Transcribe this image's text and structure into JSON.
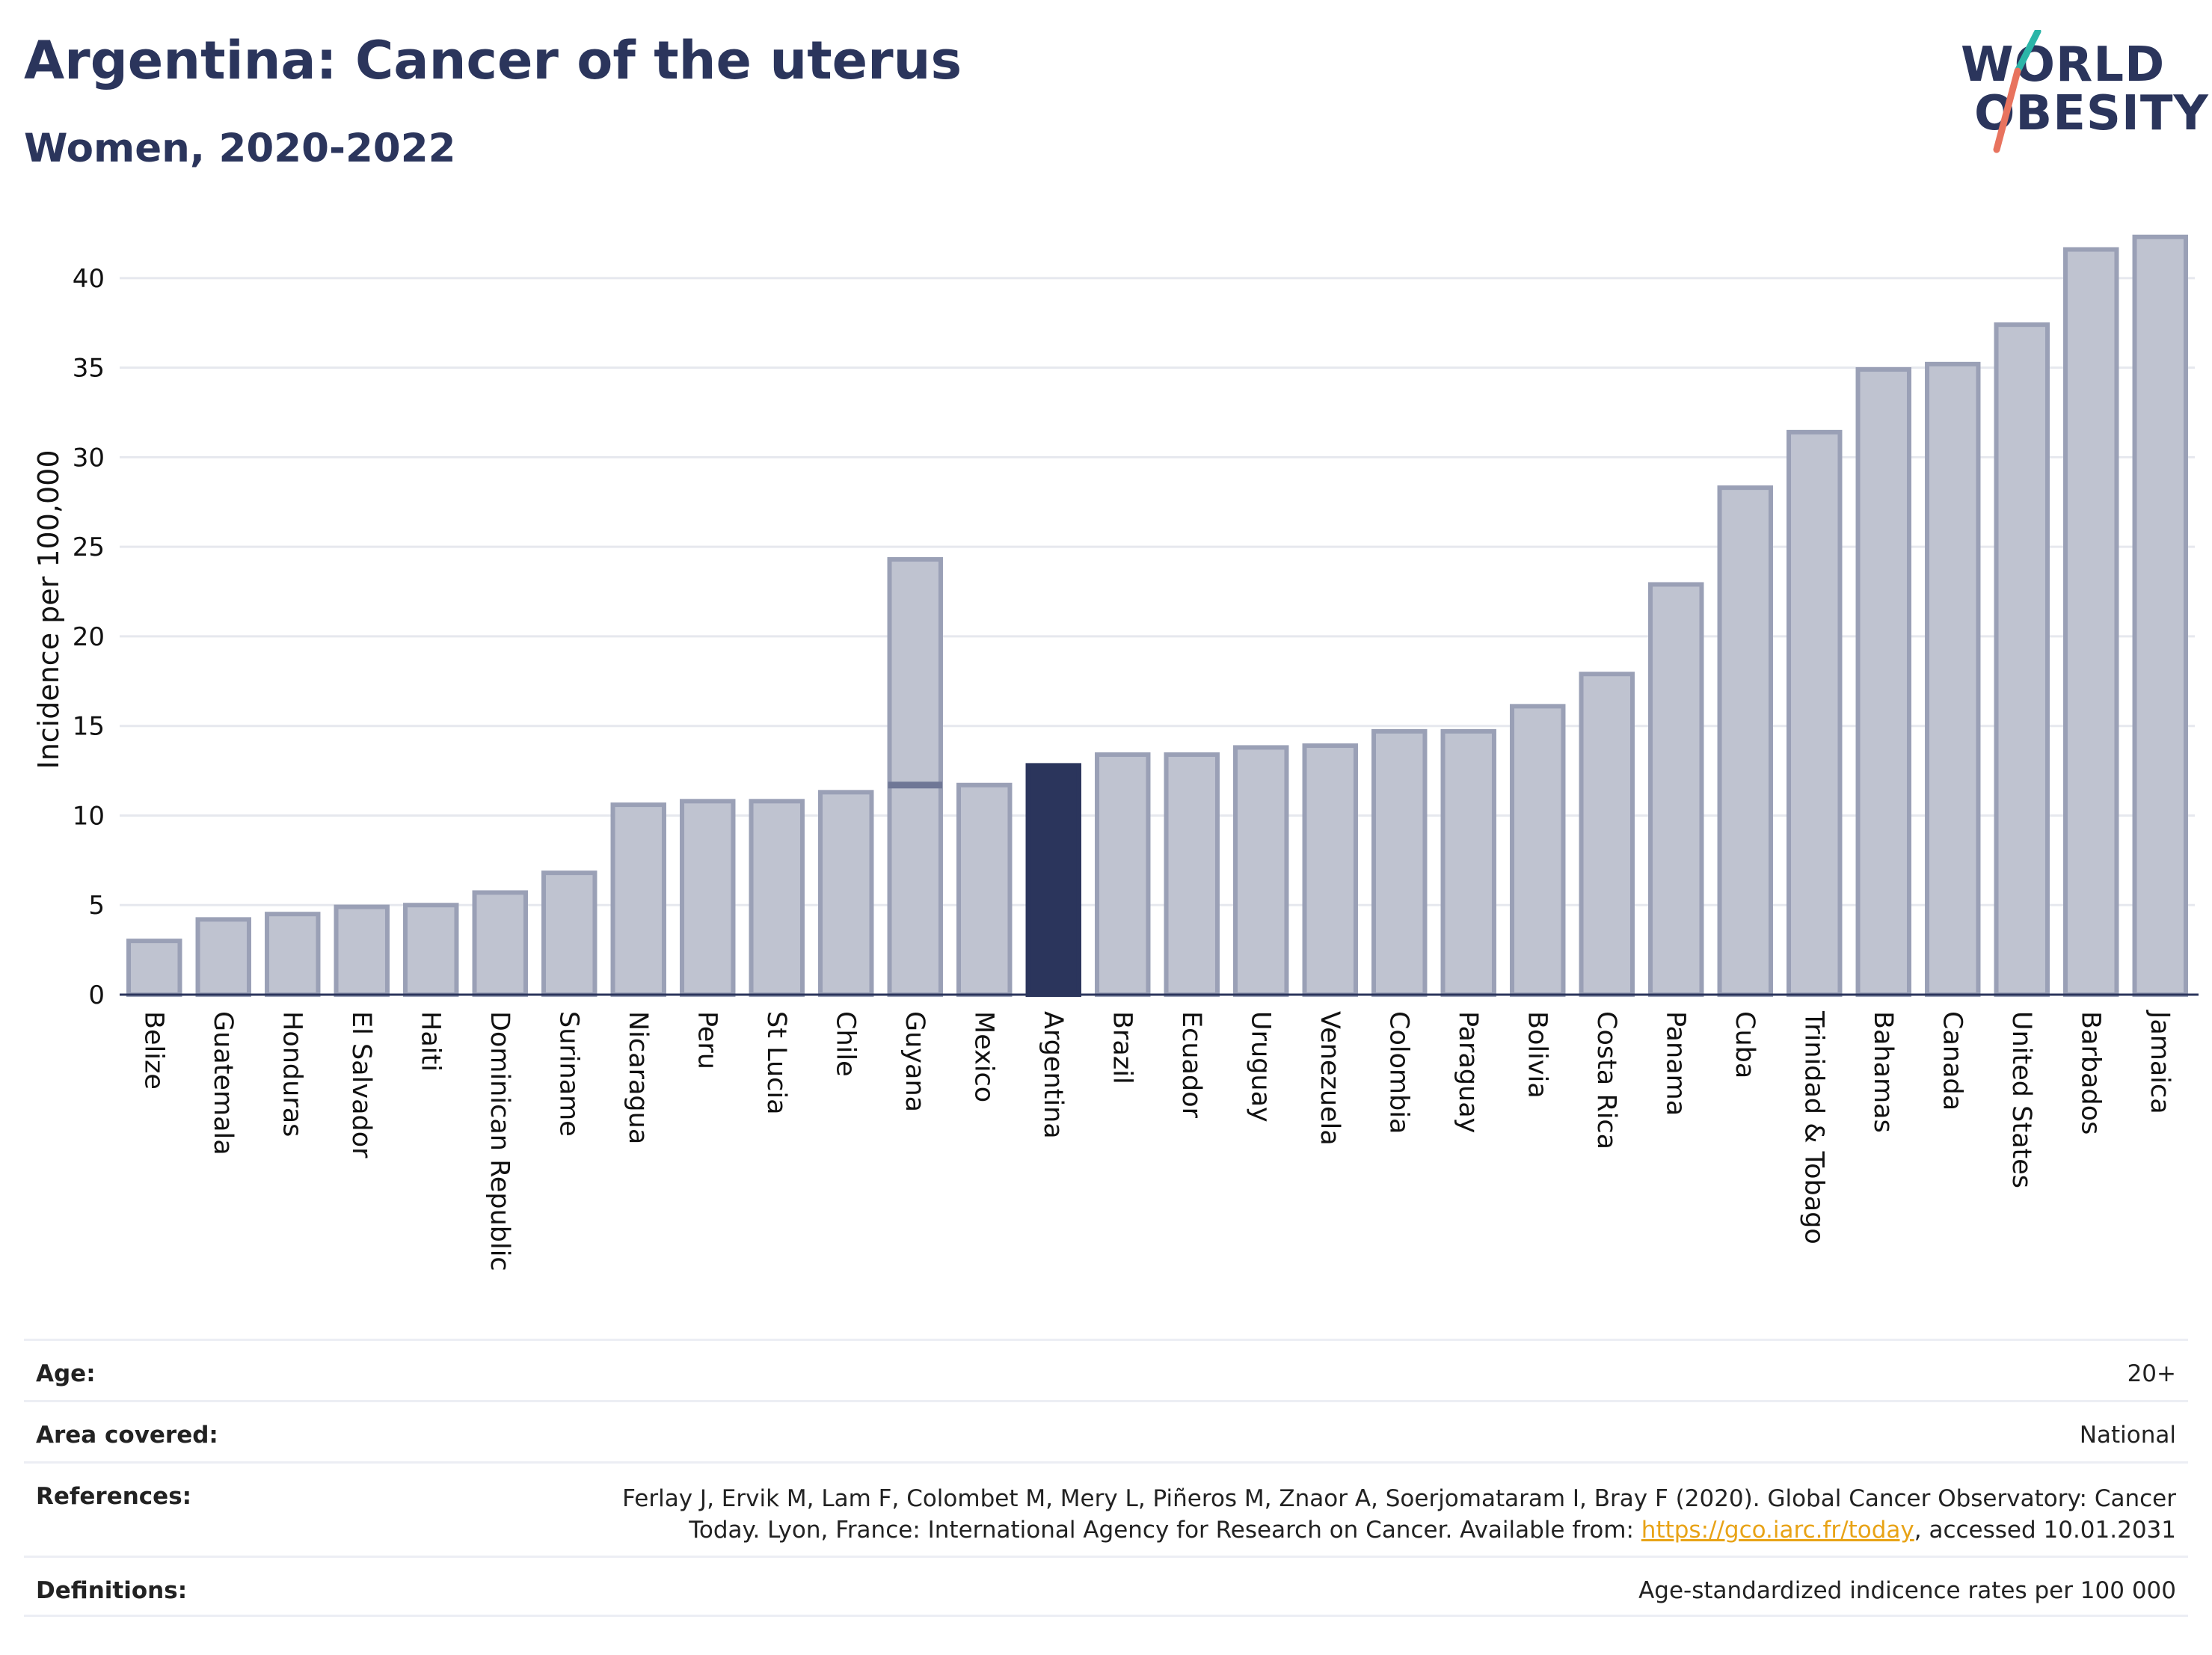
{
  "header": {
    "title": "Argentina: Cancer of the uterus",
    "subtitle": "Women, 2020-2022",
    "logo_line1": "WORLD",
    "logo_line2": "OBESITY"
  },
  "colors": {
    "highlight": "#2b355c",
    "bar_fill": "#bfc3d0",
    "bar_stroke": "#9aa0b6",
    "grid": "#e6e8ee",
    "logo_teal": "#2bb5a8",
    "logo_coral": "#e8735e"
  },
  "chart_data": {
    "type": "bar",
    "ylabel": "Incidence per 100,000",
    "ylim": [
      0,
      43
    ],
    "yticks": [
      0,
      5,
      10,
      15,
      20,
      25,
      30,
      35,
      40
    ],
    "grid": true,
    "highlight": "Argentina",
    "categories": [
      "Belize",
      "Guatemala",
      "Honduras",
      "El Salvador",
      "Haiti",
      "Dominican Republic",
      "Suriname",
      "Nicaragua",
      "Peru",
      "St Lucia",
      "Chile",
      "Guyana",
      "Mexico",
      "Argentina",
      "Brazil",
      "Ecuador",
      "Uruguay",
      "Venezuela",
      "Colombia",
      "Paraguay",
      "Bolivia",
      "Costa Rica",
      "Panama",
      "Cuba",
      "Trinidad & Tobago",
      "Bahamas",
      "Canada",
      "United States",
      "Barbados",
      "Jamaica"
    ],
    "values": [
      3.0,
      4.2,
      4.5,
      4.9,
      5.0,
      5.7,
      6.8,
      10.6,
      10.8,
      10.8,
      11.3,
      24.3,
      11.7,
      12.8,
      13.4,
      13.4,
      13.8,
      13.9,
      14.7,
      14.7,
      16.1,
      17.9,
      22.9,
      28.3,
      31.4,
      34.9,
      35.2,
      37.4,
      41.6,
      42.3
    ],
    "extra_markers": [
      {
        "category": "Guyana",
        "value": 11.7
      }
    ]
  },
  "meta": {
    "age_label": "Age:",
    "age_value": "20+",
    "area_label": "Area covered:",
    "area_value": "National",
    "refs_label": "References:",
    "refs_text_1": "Ferlay J, Ervik M, Lam F, Colombet M, Mery L, Piñeros M, Znaor A, Soerjomataram I, Bray F (2020). Global Cancer Observatory: Cancer Today. Lyon, France: International Agency for Research on Cancer. Available from: ",
    "refs_link": "https://gco.iarc.fr/today",
    "refs_text_2": ", accessed 10.01.2031",
    "defs_label": "Definitions:",
    "defs_value": "Age-standardized indicence rates per 100 000"
  }
}
